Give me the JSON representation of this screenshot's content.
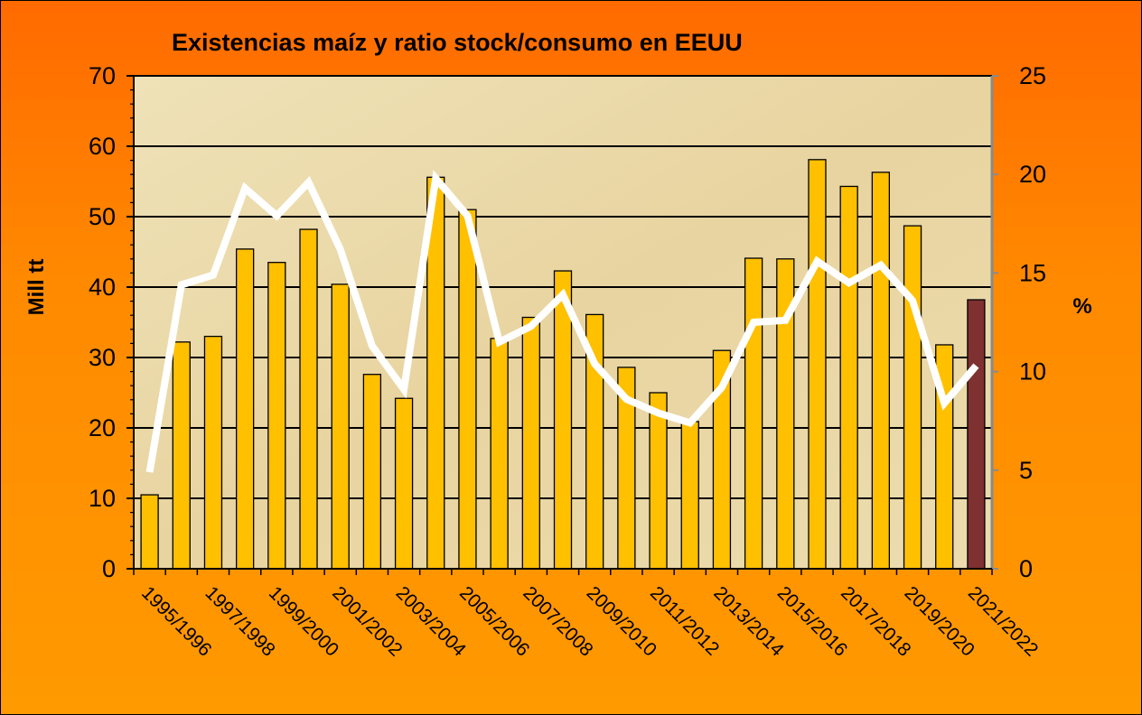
{
  "chart_data": {
    "type": "bar",
    "title": "Existencias maíz y ratio stock/consumo en EEUU",
    "ylabel": "Mill tt",
    "y2label": "%",
    "ylim": [
      0,
      70
    ],
    "y2lim": [
      0,
      25
    ],
    "yticks": [
      "0",
      "10",
      "20",
      "30",
      "40",
      "50",
      "60",
      "70"
    ],
    "y2ticks": [
      "0",
      "5",
      "10",
      "15",
      "20",
      "25"
    ],
    "x_tick_labels": [
      "1995/1996",
      "1997/1998",
      "1999/2000",
      "2001/2002",
      "2003/2004",
      "2005/2006",
      "2007/2008",
      "2009/2010",
      "2011/2012",
      "2013/2014",
      "2015/2016",
      "2017/2018",
      "2019/2020",
      "2021/2022"
    ],
    "categories": [
      "1995/1996",
      "1996/1997",
      "1997/1998",
      "1998/1999",
      "1999/2000",
      "2000/2001",
      "2001/2002",
      "2002/2003",
      "2003/2004",
      "2004/2005",
      "2005/2006",
      "2006/2007",
      "2007/2008",
      "2008/2009",
      "2009/2010",
      "2010/2011",
      "2011/2012",
      "2012/2013",
      "2013/2014",
      "2014/2015",
      "2015/2016",
      "2016/2017",
      "2017/2018",
      "2018/2019",
      "2019/2020",
      "2020/2021",
      "2021/2022"
    ],
    "series": [
      {
        "type": "bar",
        "axis": "left",
        "values": [
          10.5,
          32.2,
          33,
          45.4,
          43.5,
          48.2,
          40.4,
          27.6,
          24.2,
          55.6,
          51,
          32.7,
          35.7,
          42.3,
          36.1,
          28.6,
          25,
          20.9,
          31,
          44.1,
          44,
          58.1,
          54.3,
          56.3,
          48.7,
          31.8,
          38.2
        ],
        "highlight_last": true
      },
      {
        "type": "line",
        "axis": "right",
        "values": [
          4.9,
          14.4,
          14.9,
          19.3,
          17.9,
          19.6,
          16.2,
          11.3,
          9.1,
          19.8,
          17.9,
          11.5,
          12.3,
          13.9,
          10.4,
          8.6,
          7.9,
          7.4,
          9.2,
          12.5,
          12.6,
          15.6,
          14.5,
          15.4,
          13.6,
          8.4,
          10.3
        ]
      }
    ],
    "colors": {
      "bar": "#ffc000",
      "bar_highlight": "#7f3030",
      "line": "#ffffff",
      "plot_bg": "#ead9a8",
      "frame": "#ff7a00"
    },
    "grid": "horizontal major lines",
    "legend": "none"
  }
}
